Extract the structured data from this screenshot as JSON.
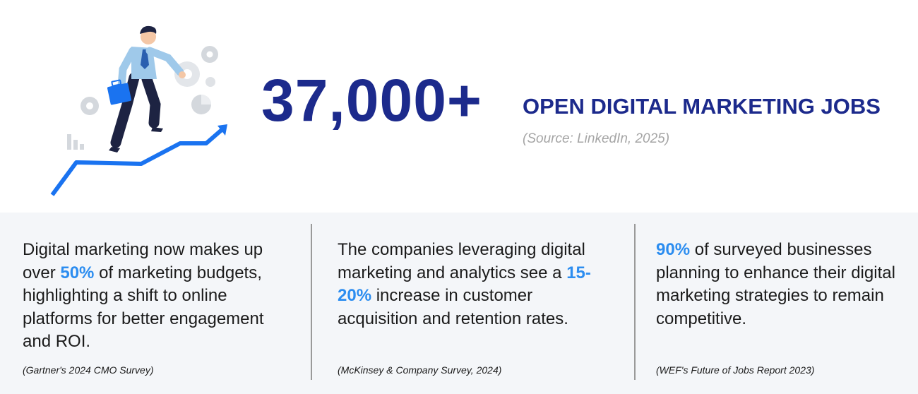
{
  "hero": {
    "number": "37,000+",
    "headline": "OPEN DIGITAL MARKETING JOBS",
    "source": "(Source: LinkedIn, 2025)"
  },
  "stats": [
    {
      "before": "Digital marketing now makes up over ",
      "highlight": "50%",
      "after": " of marketing budgets, highlighting a shift to online platforms for better engagement and ROI.",
      "citation": "(Gartner's 2024 CMO Survey)"
    },
    {
      "before": "The companies leveraging digital marketing and analytics see a ",
      "highlight": "15-20%",
      "after": " increase in customer acquisition and retention rates.",
      "citation": "(McKinsey & Company Survey, 2024)"
    },
    {
      "before": "",
      "highlight": "90%",
      "after": " of surveyed businesses planning to enhance their digital marketing strategies to remain competitive.",
      "citation": "(WEF's Future of Jobs Report 2023)"
    }
  ],
  "colors": {
    "navy": "#1c2a8c",
    "accent": "#2c8df0",
    "panel": "#f4f6f9"
  },
  "icons": [
    "businessman-illustration",
    "growth-arrow-icon",
    "gear-icon",
    "bar-chart-icon",
    "pie-chart-icon",
    "briefcase-icon"
  ]
}
